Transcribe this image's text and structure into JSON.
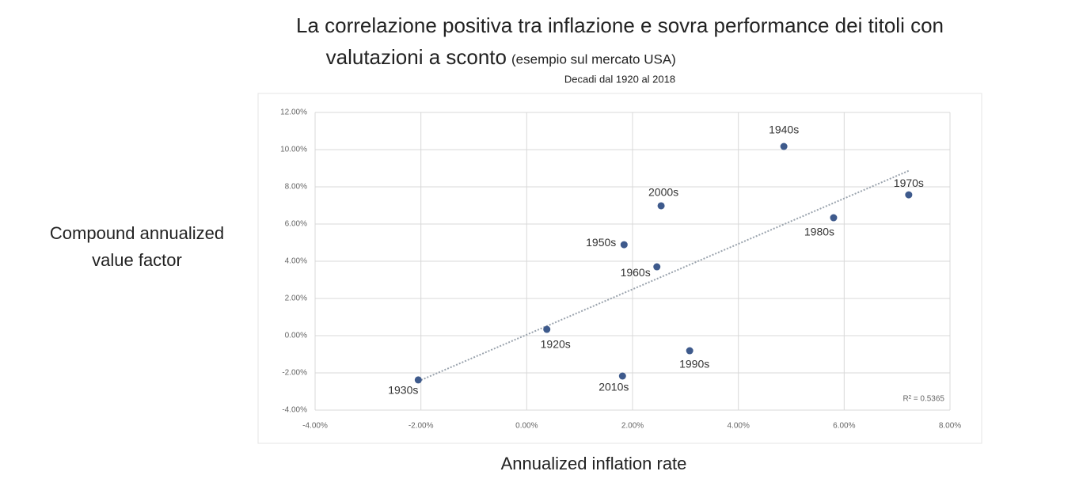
{
  "chart_data": {
    "type": "scatter",
    "title": "La correlazione positiva tra inflazione e sovra performance dei titoli con",
    "title_line2": "valutazioni a sconto",
    "title_note": "(esempio sul mercato USA)",
    "subtitle": "Decadi dal 1920 al 2018",
    "y_label_line1": "Compound annualized",
    "y_label_line2": "value factor",
    "x_label": "Annualized inflation rate",
    "r_squared_label": "R² = 0.5365",
    "color": "#3e5a8c",
    "trendline": true,
    "point_labels": [
      "1920s",
      "1930s",
      "1940s",
      "1950s",
      "1960s",
      "1970s",
      "1980s",
      "1990s",
      "2000s",
      "2010s"
    ],
    "x": [
      0.38,
      -2.05,
      4.86,
      1.84,
      2.46,
      7.22,
      5.8,
      3.08,
      2.54,
      1.81
    ],
    "values": [
      0.34,
      -2.38,
      10.17,
      4.89,
      3.7,
      7.57,
      6.34,
      -0.81,
      6.98,
      -2.17
    ],
    "xlim": [
      -4,
      8
    ],
    "ylim": [
      -4,
      12
    ],
    "xticks": [
      {
        "value": -4,
        "label": "-4.00%"
      },
      {
        "value": -2,
        "label": "-2.00%"
      },
      {
        "value": 0,
        "label": "0.00%"
      },
      {
        "value": 2,
        "label": "2.00%"
      },
      {
        "value": 4,
        "label": "4.00%"
      },
      {
        "value": 6,
        "label": "6.00%"
      },
      {
        "value": 8,
        "label": "8.00%"
      }
    ],
    "yticks": [
      {
        "value": -4,
        "label": "-4.00%"
      },
      {
        "value": -2,
        "label": "-2.00%"
      },
      {
        "value": 0,
        "label": "0.00%"
      },
      {
        "value": 2,
        "label": "2.00%"
      },
      {
        "value": 4,
        "label": "4.00%"
      },
      {
        "value": 6,
        "label": "6.00%"
      },
      {
        "value": 8,
        "label": "8.00%"
      },
      {
        "value": 10,
        "label": "10.00%"
      },
      {
        "value": 12,
        "label": "12.00%"
      }
    ],
    "grid": true
  }
}
